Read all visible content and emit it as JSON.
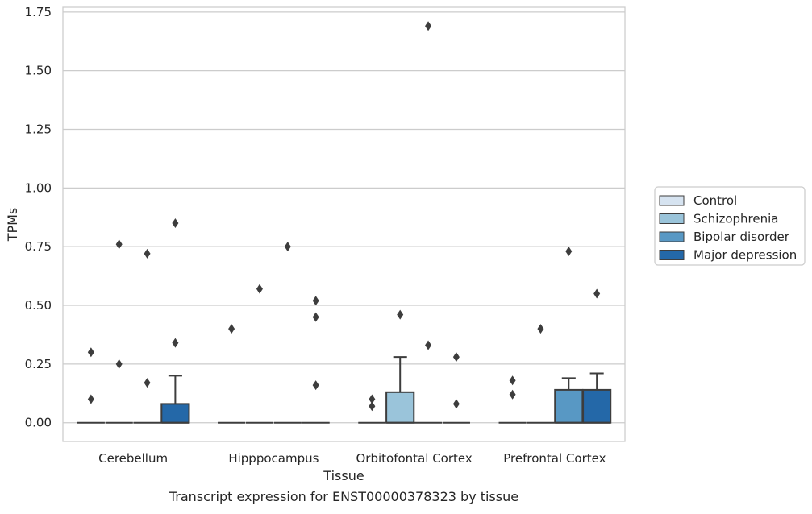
{
  "chart_data": {
    "type": "box",
    "title": "Transcript expression for ENST00000378323 by tissue",
    "xlabel": "Tissue",
    "ylabel": "TPMs",
    "categories": [
      "Cerebellum",
      "Hipppocampus",
      "Orbitofontal Cortex",
      "Prefrontal Cortex"
    ],
    "ylim": [
      -0.08,
      1.77
    ],
    "yticks": [
      0.0,
      0.25,
      0.5,
      0.75,
      1.0,
      1.25,
      1.5,
      1.75
    ],
    "ytick_labels": [
      "0.00",
      "0.25",
      "0.50",
      "0.75",
      "1.00",
      "1.25",
      "1.50",
      "1.75"
    ],
    "grid": "horizontal",
    "legend_position": "right",
    "series": [
      {
        "name": "Control",
        "color": "#d6e3f0",
        "boxes": [
          {
            "q1": 0,
            "median": 0,
            "q3": 0,
            "whisker_low": 0,
            "whisker_high": 0,
            "outliers": [
              0.3,
              0.1
            ]
          },
          {
            "q1": 0,
            "median": 0,
            "q3": 0,
            "whisker_low": 0,
            "whisker_high": 0,
            "outliers": [
              0.4
            ]
          },
          {
            "q1": 0,
            "median": 0,
            "q3": 0,
            "whisker_low": 0,
            "whisker_high": 0,
            "outliers": [
              0.1,
              0.07
            ]
          },
          {
            "q1": 0,
            "median": 0,
            "q3": 0,
            "whisker_low": 0,
            "whisker_high": 0,
            "outliers": [
              0.18,
              0.12
            ]
          }
        ]
      },
      {
        "name": "Schizophrenia",
        "color": "#9ac4da",
        "boxes": [
          {
            "q1": 0,
            "median": 0,
            "q3": 0,
            "whisker_low": 0,
            "whisker_high": 0,
            "outliers": [
              0.76,
              0.25
            ]
          },
          {
            "q1": 0,
            "median": 0,
            "q3": 0,
            "whisker_low": 0,
            "whisker_high": 0,
            "outliers": [
              0.57
            ]
          },
          {
            "q1": 0,
            "median": 0,
            "q3": 0.13,
            "whisker_low": 0,
            "whisker_high": 0.28,
            "outliers": [
              0.46
            ]
          },
          {
            "q1": 0,
            "median": 0,
            "q3": 0,
            "whisker_low": 0,
            "whisker_high": 0,
            "outliers": [
              0.4
            ]
          }
        ]
      },
      {
        "name": "Bipolar disorder",
        "color": "#5898c4",
        "boxes": [
          {
            "q1": 0,
            "median": 0,
            "q3": 0,
            "whisker_low": 0,
            "whisker_high": 0,
            "outliers": [
              0.72,
              0.17
            ]
          },
          {
            "q1": 0,
            "median": 0,
            "q3": 0,
            "whisker_low": 0,
            "whisker_high": 0,
            "outliers": [
              0.75
            ]
          },
          {
            "q1": 0,
            "median": 0,
            "q3": 0,
            "whisker_low": 0,
            "whisker_high": 0,
            "outliers": [
              0.33,
              1.69
            ]
          },
          {
            "q1": 0,
            "median": 0,
            "q3": 0.14,
            "whisker_low": 0,
            "whisker_high": 0.19,
            "outliers": [
              0.73
            ]
          }
        ]
      },
      {
        "name": "Major depression",
        "color": "#2468a8",
        "boxes": [
          {
            "q1": 0,
            "median": 0,
            "q3": 0.08,
            "whisker_low": 0,
            "whisker_high": 0.2,
            "outliers": [
              0.85,
              0.34
            ]
          },
          {
            "q1": 0,
            "median": 0,
            "q3": 0,
            "whisker_low": 0,
            "whisker_high": 0,
            "outliers": [
              0.52,
              0.45,
              0.16
            ]
          },
          {
            "q1": 0,
            "median": 0,
            "q3": 0,
            "whisker_low": 0,
            "whisker_high": 0,
            "outliers": [
              0.28,
              0.08
            ]
          },
          {
            "q1": 0,
            "median": 0,
            "q3": 0.14,
            "whisker_low": 0,
            "whisker_high": 0.21,
            "outliers": [
              0.55
            ]
          }
        ]
      }
    ]
  }
}
